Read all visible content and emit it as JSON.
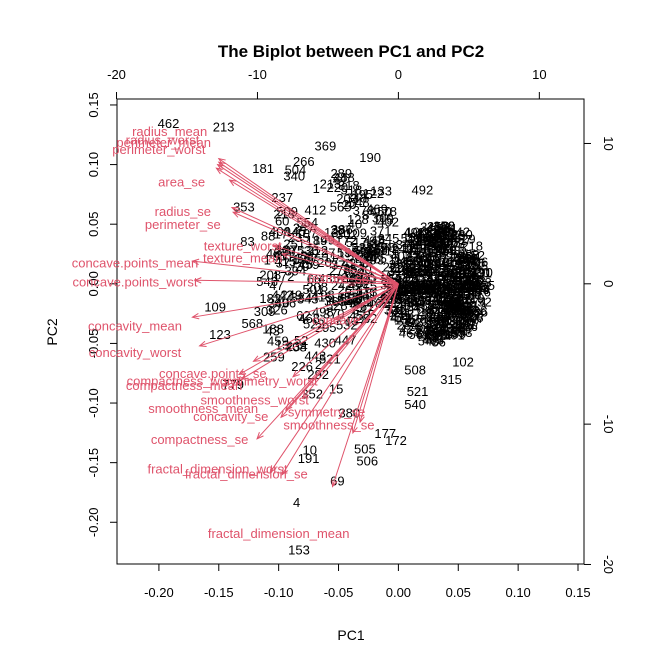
{
  "chart_data": {
    "type": "scatter",
    "subtype": "biplot",
    "title": "The Biplot between PC1 and PC2",
    "xlabel": "PC1",
    "ylabel": "PC2",
    "xlim": [
      -0.235,
      0.155
    ],
    "ylim": [
      -0.235,
      0.155
    ],
    "x_ticks": [
      "-0.20",
      "-0.15",
      "-0.10",
      "-0.05",
      "0.00",
      "0.05",
      "0.10",
      "0.15"
    ],
    "y_ticks": [
      "-0.20",
      "-0.15",
      "-0.10",
      "-0.05",
      "0.00",
      "0.05",
      "0.10",
      "0.15"
    ],
    "x_tick_values": [
      -0.2,
      -0.15,
      -0.1,
      -0.05,
      0,
      0.05,
      0.1,
      0.15
    ],
    "y_tick_values": [
      -0.2,
      -0.15,
      -0.1,
      -0.05,
      0,
      0.05,
      0.1,
      0.15
    ],
    "top_axis_ticks": [
      "-20",
      "-10",
      "0",
      "10"
    ],
    "top_axis_values": [
      -20,
      -10,
      0,
      10
    ],
    "right_axis_ticks": [
      "-20",
      "-10",
      "0",
      "10"
    ],
    "right_axis_values": [
      -20,
      -10,
      0,
      10
    ],
    "secondary_scale": 0.01177,
    "arrow_color": "#df536b",
    "observation_labels": [
      {
        "label": "462",
        "x": -0.192,
        "y": 0.135
      },
      {
        "label": "213",
        "x": -0.146,
        "y": 0.132
      },
      {
        "label": "369",
        "x": -0.061,
        "y": 0.116
      },
      {
        "label": "266",
        "x": -0.079,
        "y": 0.103
      },
      {
        "label": "181",
        "x": -0.113,
        "y": 0.097
      },
      {
        "label": "504",
        "x": -0.086,
        "y": 0.096
      },
      {
        "label": "340",
        "x": -0.087,
        "y": 0.091
      },
      {
        "label": "24",
        "x": -0.049,
        "y": 0.089
      },
      {
        "label": "220",
        "x": -0.051,
        "y": 0.081
      },
      {
        "label": "122",
        "x": -0.021,
        "y": 0.076
      },
      {
        "label": "492",
        "x": 0.02,
        "y": 0.079
      },
      {
        "label": "237",
        "x": -0.097,
        "y": 0.073
      },
      {
        "label": "353",
        "x": -0.129,
        "y": 0.065
      },
      {
        "label": "83",
        "x": -0.126,
        "y": 0.036
      },
      {
        "label": "251",
        "x": -0.087,
        "y": 0.034
      },
      {
        "label": "394",
        "x": -0.086,
        "y": 0.011
      },
      {
        "label": "208",
        "x": -0.107,
        "y": 0.008
      },
      {
        "label": "182",
        "x": -0.107,
        "y": -0.012
      },
      {
        "label": "109",
        "x": -0.153,
        "y": -0.019
      },
      {
        "label": "568",
        "x": -0.122,
        "y": -0.033
      },
      {
        "label": "123",
        "x": -0.149,
        "y": -0.042
      },
      {
        "label": "43",
        "x": -0.105,
        "y": -0.039
      },
      {
        "label": "13",
        "x": -0.097,
        "y": -0.051
      },
      {
        "label": "259",
        "x": -0.104,
        "y": -0.061
      },
      {
        "label": "779",
        "x": -0.138,
        "y": -0.084
      },
      {
        "label": "352",
        "x": -0.072,
        "y": -0.092
      },
      {
        "label": "15",
        "x": -0.052,
        "y": -0.088
      },
      {
        "label": "380",
        "x": -0.041,
        "y": -0.108
      },
      {
        "label": "10",
        "x": -0.074,
        "y": -0.139
      },
      {
        "label": "191",
        "x": -0.075,
        "y": -0.146
      },
      {
        "label": "69",
        "x": -0.051,
        "y": -0.165
      },
      {
        "label": "4",
        "x": -0.085,
        "y": -0.183
      },
      {
        "label": "153",
        "x": -0.083,
        "y": -0.223
      },
      {
        "label": "505",
        "x": -0.028,
        "y": -0.138
      },
      {
        "label": "506",
        "x": -0.026,
        "y": -0.148
      },
      {
        "label": "172",
        "x": -0.002,
        "y": -0.131
      },
      {
        "label": "177",
        "x": -0.011,
        "y": -0.125
      },
      {
        "label": "540",
        "x": 0.014,
        "y": -0.101
      },
      {
        "label": "521",
        "x": 0.016,
        "y": -0.09
      },
      {
        "label": "315",
        "x": 0.044,
        "y": -0.08
      },
      {
        "label": "508",
        "x": 0.014,
        "y": -0.072
      },
      {
        "label": "102",
        "x": 0.054,
        "y": -0.065
      }
    ],
    "variables": [
      {
        "label": "radius_mean",
        "x": -0.15,
        "y": 0.105,
        "lx": -0.191,
        "ly": 0.128
      },
      {
        "label": "radius_worst",
        "x": -0.15,
        "y": 0.102,
        "lx": -0.197,
        "ly": 0.121
      },
      {
        "label": "perimeter_mean",
        "x": -0.151,
        "y": 0.1,
        "lx": -0.196,
        "ly": 0.119
      },
      {
        "label": "perimeter_worst",
        "x": -0.152,
        "y": 0.097,
        "lx": -0.2,
        "ly": 0.113
      },
      {
        "label": "area_se",
        "x": -0.141,
        "y": 0.087,
        "lx": -0.181,
        "ly": 0.086
      },
      {
        "label": "radius_se",
        "x": -0.139,
        "y": 0.064,
        "lx": -0.18,
        "ly": 0.061
      },
      {
        "label": "perimeter_se",
        "x": -0.138,
        "y": 0.06,
        "lx": -0.18,
        "ly": 0.05
      },
      {
        "label": "texture_worst",
        "x": -0.104,
        "y": 0.032,
        "lx": -0.13,
        "ly": 0.032
      },
      {
        "label": "texture_mean",
        "x": -0.097,
        "y": 0.025,
        "lx": -0.13,
        "ly": 0.022
      },
      {
        "label": "concave.points_mean",
        "x": -0.172,
        "y": 0.019,
        "lx": -0.22,
        "ly": 0.018
      },
      {
        "label": "concave.points_worst",
        "x": -0.17,
        "y": 0.003,
        "lx": -0.22,
        "ly": 0.002
      },
      {
        "label": "concavity_mean",
        "x": -0.172,
        "y": -0.028,
        "lx": -0.22,
        "ly": -0.035
      },
      {
        "label": "concavity_worst",
        "x": -0.166,
        "y": -0.052,
        "lx": -0.22,
        "ly": -0.057
      },
      {
        "label": "concave.points_se",
        "x": -0.121,
        "y": -0.065,
        "lx": -0.155,
        "ly": -0.075
      },
      {
        "label": "compactness_worst",
        "x": -0.133,
        "y": -0.076,
        "lx": -0.179,
        "ly": -0.081
      },
      {
        "label": "compactness_mean",
        "x": -0.131,
        "y": -0.08,
        "lx": -0.179,
        "ly": -0.085
      },
      {
        "label": "symmetry_worst",
        "x": -0.088,
        "y": -0.078,
        "lx": -0.107,
        "ly": -0.081
      },
      {
        "label": "smoothness_worst",
        "x": -0.08,
        "y": -0.096,
        "lx": -0.12,
        "ly": -0.097
      },
      {
        "label": "smoothness_mean",
        "x": -0.094,
        "y": -0.106,
        "lx": -0.163,
        "ly": -0.104
      },
      {
        "label": "concavity_se",
        "x": -0.098,
        "y": -0.112,
        "lx": -0.14,
        "ly": -0.111
      },
      {
        "label": "compactness_se",
        "x": -0.118,
        "y": -0.13,
        "lx": -0.166,
        "ly": -0.13
      },
      {
        "label": "fractal_dimension_worst",
        "x": -0.107,
        "y": -0.158,
        "lx": -0.151,
        "ly": -0.155
      },
      {
        "label": "fractal_dimension_se",
        "x": -0.097,
        "y": -0.16,
        "lx": -0.127,
        "ly": -0.159
      },
      {
        "label": "symmetry_se",
        "x": -0.032,
        "y": -0.116,
        "lx": -0.06,
        "ly": -0.107
      },
      {
        "label": "smoothness_se",
        "x": -0.038,
        "y": -0.125,
        "lx": -0.058,
        "ly": -0.118
      },
      {
        "label": "fractal_dimension_mean",
        "x": -0.055,
        "y": -0.17,
        "lx": -0.1,
        "ly": -0.209
      },
      {
        "label": "concave",
        "x": -0.052,
        "y": -0.03,
        "lx": -0.052,
        "ly": -0.03
      },
      {
        "label": "texture_se",
        "x": -0.05,
        "y": 0.005,
        "lx": -0.05,
        "ly": 0.005
      }
    ],
    "grid": false,
    "legend": "none"
  }
}
